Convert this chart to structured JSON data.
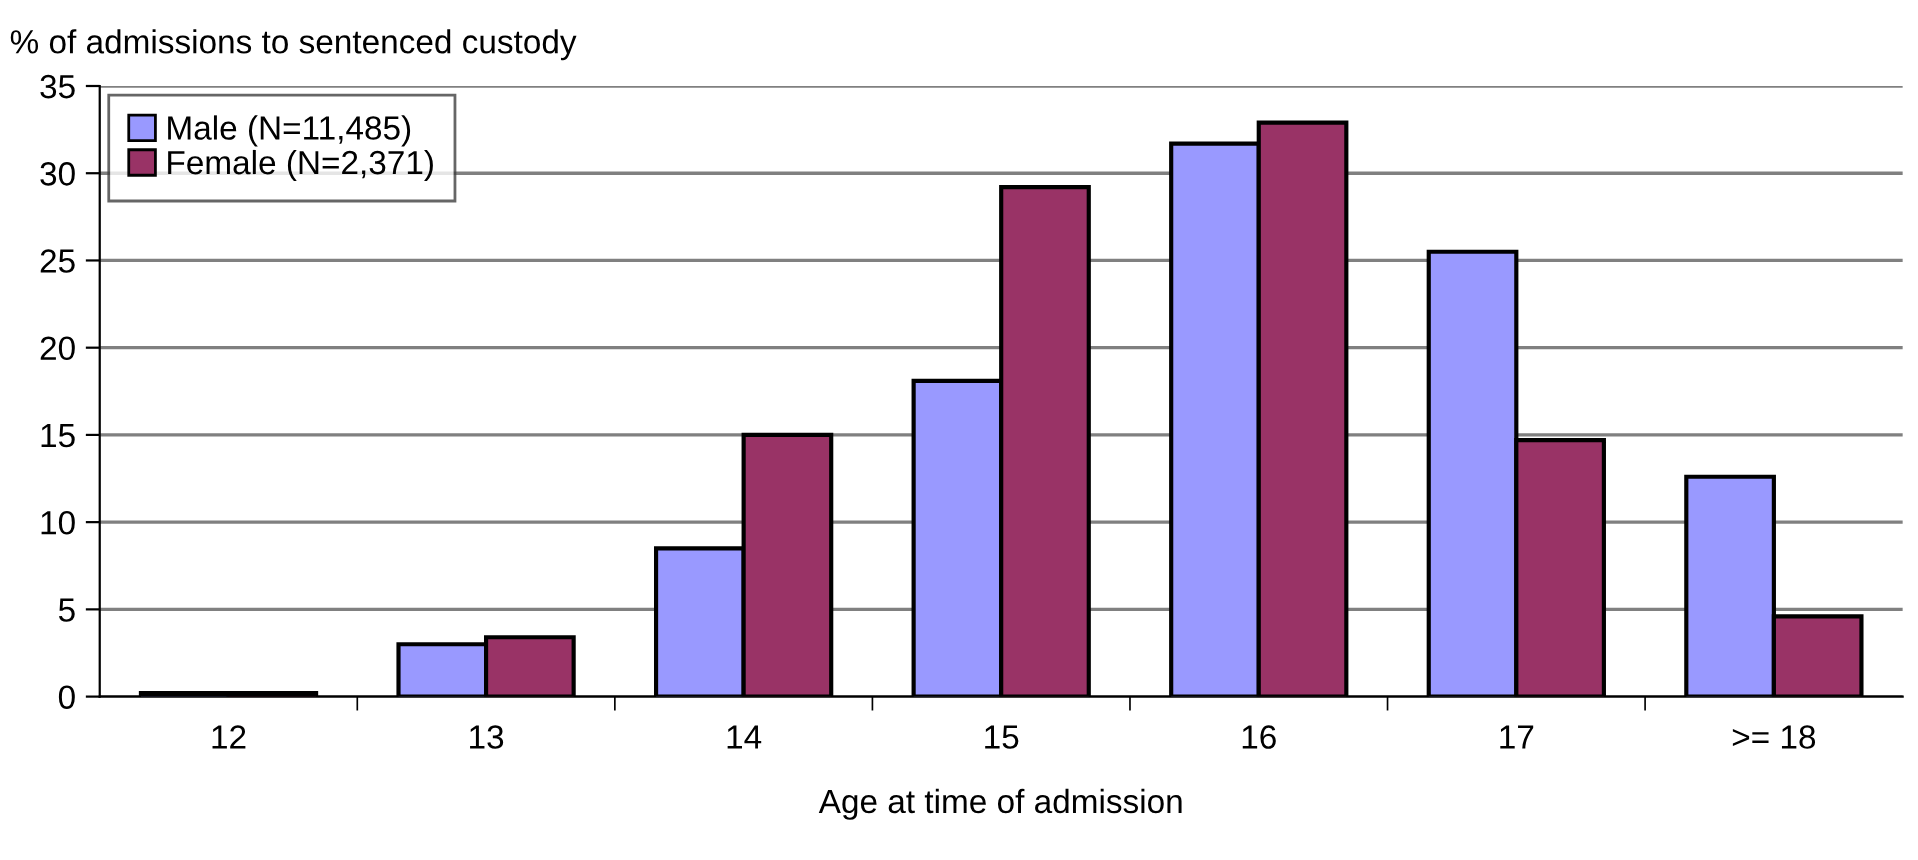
{
  "chart_data": {
    "type": "bar",
    "ylabel": "% of admissions to sentenced custody",
    "xlabel": "Age at time of admission",
    "categories": [
      "12",
      "13",
      "14",
      "15",
      "16",
      "17",
      ">= 18"
    ],
    "series": [
      {
        "name": "Male (N=11,485)",
        "color": "#9999ff",
        "values": [
          0.2,
          3.0,
          8.5,
          18.1,
          31.7,
          25.5,
          12.6
        ]
      },
      {
        "name": "Female (N=2,371)",
        "color": "#993366",
        "values": [
          0.2,
          3.4,
          15.0,
          29.2,
          32.9,
          14.7,
          4.6
        ]
      }
    ],
    "ylim": [
      0,
      35
    ],
    "yticks": [
      0,
      5,
      10,
      15,
      20,
      25,
      30,
      35
    ],
    "grid": "y",
    "legend": "top left"
  }
}
